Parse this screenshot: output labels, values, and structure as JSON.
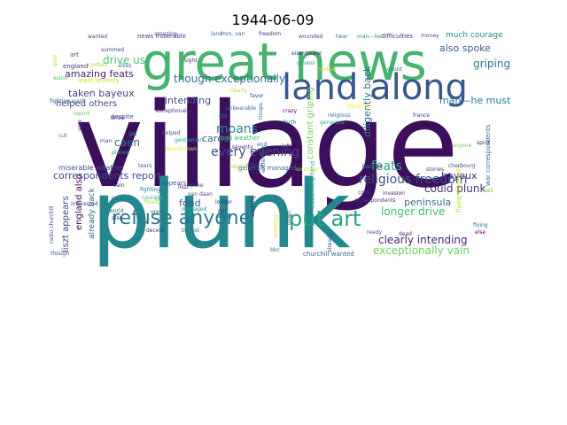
{
  "chart_data": {
    "type": "wordcloud",
    "title": "1944-06-09",
    "grid": false,
    "colormap": "viridis",
    "words": [
      {
        "text": "village",
        "size": 132,
        "color": "#3b0f5c"
      },
      {
        "text": "plunk",
        "size": 106,
        "color": "#23888e"
      },
      {
        "text": "great news",
        "size": 58,
        "color": "#46b36e"
      },
      {
        "text": "land along",
        "size": 40,
        "color": "#39568c"
      },
      {
        "text": "refuse anyone",
        "size": 22,
        "color": "#2a788e"
      },
      {
        "text": "put art",
        "size": 24,
        "color": "#20a486"
      },
      {
        "text": "religious freedom",
        "size": 14,
        "color": "#3b528b"
      },
      {
        "text": "though exceptionally",
        "size": 12,
        "color": "#2d708e"
      },
      {
        "text": "drive us",
        "size": 12,
        "color": "#4ac16d"
      },
      {
        "text": "amazing feats",
        "size": 11,
        "color": "#481f70"
      },
      {
        "text": "taken bayeux",
        "size": 11,
        "color": "#433e85"
      },
      {
        "text": "helped others",
        "size": 10,
        "color": "#414487"
      },
      {
        "text": "intending",
        "size": 11,
        "color": "#38588c"
      },
      {
        "text": "moans",
        "size": 14,
        "color": "#25848e"
      },
      {
        "text": "caen",
        "size": 12,
        "color": "#31688e"
      },
      {
        "text": "every evening",
        "size": 14,
        "color": "#404688"
      },
      {
        "text": "correspondents report",
        "size": 11,
        "color": "#3e4989"
      },
      {
        "text": "cared",
        "size": 11,
        "color": "#35608d"
      },
      {
        "text": "also spoke",
        "size": 11,
        "color": "#355f8d"
      },
      {
        "text": "griping",
        "size": 12,
        "color": "#2a768e"
      },
      {
        "text": "man—he must",
        "size": 11,
        "color": "#277f8e"
      },
      {
        "text": "feats",
        "size": 14,
        "color": "#26ad81"
      },
      {
        "text": "bayeux",
        "size": 11,
        "color": "#472c7a"
      },
      {
        "text": "could plunk",
        "size": 12,
        "color": "#472d7b"
      },
      {
        "text": "longer drive",
        "size": 12,
        "color": "#3fbc73"
      },
      {
        "text": "peninsula",
        "size": 11,
        "color": "#2e6f8e"
      },
      {
        "text": "clearly intending",
        "size": 12,
        "color": "#482475"
      },
      {
        "text": "exceptionally vain",
        "size": 12,
        "color": "#70cf57"
      },
      {
        "text": "fond",
        "size": 11,
        "color": "#3a548c"
      },
      {
        "text": "miserable weather",
        "size": 8,
        "color": "#3c4f8a"
      },
      {
        "text": "generals managed",
        "size": 7,
        "color": "#2c738e"
      },
      {
        "text": "bad weather",
        "size": 7,
        "color": "#35b779"
      },
      {
        "text": "extremely fond",
        "size": 7,
        "color": "#29af7f"
      },
      {
        "text": "much courage",
        "size": 9,
        "color": "#24868e"
      },
      {
        "text": "diligently back",
        "size": 11,
        "color": "#2c728e"
      },
      {
        "text": "constant griping",
        "size": 10,
        "color": "#7ad151"
      },
      {
        "text": "liszt appears",
        "size": 10,
        "color": "#3f4788"
      },
      {
        "text": "england also",
        "size": 10,
        "color": "#440154"
      },
      {
        "text": "already back",
        "size": 9,
        "color": "#2e6e8e"
      },
      {
        "text": "war correspondents",
        "size": 7,
        "color": "#2d718e"
      },
      {
        "text": "flying diligently",
        "size": 7,
        "color": "#b5de2b"
      },
      {
        "text": "news miserable",
        "size": 7,
        "color": "#453581"
      },
      {
        "text": "wounded",
        "size": 6,
        "color": "#3b528b"
      },
      {
        "text": "hear",
        "size": 6,
        "color": "#2a778e"
      },
      {
        "text": "man—he",
        "size": 6,
        "color": "#21918c"
      },
      {
        "text": "difficulties",
        "size": 7,
        "color": "#482878"
      },
      {
        "text": "money",
        "size": 6,
        "color": "#3b528b"
      },
      {
        "text": "eisenhower",
        "size": 6,
        "color": "#46327e"
      },
      {
        "text": "groans",
        "size": 6,
        "color": "#1f9e89"
      },
      {
        "text": "modest",
        "size": 6,
        "color": "#d2e21b"
      },
      {
        "text": "count",
        "size": 6,
        "color": "#2e6d8e"
      },
      {
        "text": "so crazy",
        "size": 6,
        "color": "#b8de29"
      },
      {
        "text": "wanted",
        "size": 6,
        "color": "#3f4889"
      },
      {
        "text": "england",
        "size": 7,
        "color": "#472f7d"
      },
      {
        "text": "art",
        "size": 7,
        "color": "#3b518b"
      },
      {
        "text": "content",
        "size": 6,
        "color": "#addc30"
      },
      {
        "text": "allies",
        "size": 6,
        "color": "#2a788e"
      },
      {
        "text": "sight",
        "size": 6,
        "color": "#404387"
      },
      {
        "text": "water",
        "size": 6,
        "color": "#5ec962"
      },
      {
        "text": "least seventy",
        "size": 7,
        "color": "#c0df25"
      },
      {
        "text": "fighting spirit",
        "size": 6,
        "color": "#31688e"
      },
      {
        "text": "report",
        "size": 6,
        "color": "#5cc863"
      },
      {
        "text": "despite",
        "size": 7,
        "color": "#3d4e8a"
      },
      {
        "text": "exceptionally",
        "size": 6,
        "color": "#443a83"
      },
      {
        "text": "old",
        "size": 6,
        "color": "#25858e"
      },
      {
        "text": "favor",
        "size": 6,
        "color": "#46337f"
      },
      {
        "text": "clearly",
        "size": 6,
        "color": "#b2dd2d"
      },
      {
        "text": "unbearable",
        "size": 6,
        "color": "#297a8e"
      },
      {
        "text": "religious",
        "size": 6,
        "color": "#2d718e"
      },
      {
        "text": "generous",
        "size": 6,
        "color": "#2db27d"
      },
      {
        "text": "anyone",
        "size": 6,
        "color": "#6ece58"
      },
      {
        "text": "stories",
        "size": 6,
        "color": "#3e4a89"
      },
      {
        "text": "spirit",
        "size": 6,
        "color": "#48186a"
      },
      {
        "text": "cut",
        "size": 6,
        "color": "#2c728e"
      },
      {
        "text": "gentleman",
        "size": 6,
        "color": "#21a685"
      },
      {
        "text": "decent man",
        "size": 6,
        "color": "#e5e419"
      },
      {
        "text": "others",
        "size": 6,
        "color": "#3f4788"
      },
      {
        "text": "seventy",
        "size": 6,
        "color": "#482677"
      },
      {
        "text": "tears",
        "size": 6,
        "color": "#3a538b"
      },
      {
        "text": "fighting",
        "size": 6,
        "color": "#2c738e"
      },
      {
        "text": "courage",
        "size": 6,
        "color": "#31b57b"
      },
      {
        "text": "finally",
        "size": 6,
        "color": "#9fda3a"
      },
      {
        "text": "located",
        "size": 6,
        "color": "#2b758e"
      },
      {
        "text": "planes",
        "size": 6,
        "color": "#1fa088"
      },
      {
        "text": "cherbourg",
        "size": 6,
        "color": "#3b528b"
      },
      {
        "text": "refuse",
        "size": 6,
        "color": "#482576"
      },
      {
        "text": "talk",
        "size": 6,
        "color": "#6ccd5a"
      },
      {
        "text": "flying",
        "size": 6,
        "color": "#2b748e"
      },
      {
        "text": "else",
        "size": 6,
        "color": "#46075a"
      },
      {
        "text": "cold",
        "size": 6,
        "color": "#453882"
      },
      {
        "text": "invasion",
        "size": 6,
        "color": "#481769"
      },
      {
        "text": "correspondents",
        "size": 6,
        "color": "#453882"
      },
      {
        "text": "bucket",
        "size": 6,
        "color": "#2a768e"
      },
      {
        "text": "churchill wanted",
        "size": 7,
        "color": "#35608d"
      },
      {
        "text": "radio churchill",
        "size": 6,
        "color": "#3e4c8a"
      },
      {
        "text": "interested",
        "size": 6,
        "color": "#3d4d8a"
      },
      {
        "text": "decent",
        "size": 6,
        "color": "#482979"
      },
      {
        "text": "great",
        "size": 6,
        "color": "#33628d"
      },
      {
        "text": "world",
        "size": 6,
        "color": "#2e6e8e"
      },
      {
        "text": "vain",
        "size": 6,
        "color": "#472a7a"
      },
      {
        "text": "get",
        "size": 6,
        "color": "#20928c"
      },
      {
        "text": "helped",
        "size": 6,
        "color": "#38588c"
      },
      {
        "text": "amazing",
        "size": 6,
        "color": "#3f4889"
      },
      {
        "text": "land",
        "size": 6,
        "color": "#31678e"
      },
      {
        "text": "mrs. van",
        "size": 6,
        "color": "#2e6f8e"
      },
      {
        "text": "freedom",
        "size": 6,
        "color": "#46327e"
      },
      {
        "text": "crazy",
        "size": 6,
        "color": "#440154"
      },
      {
        "text": "forth",
        "size": 6,
        "color": "#2d708e"
      },
      {
        "text": "left",
        "size": 6,
        "color": "#3a548c"
      },
      {
        "text": "end",
        "size": 6,
        "color": "#2e6d8e"
      },
      {
        "text": "hoping",
        "size": 6,
        "color": "#a5db36"
      },
      {
        "text": "liszt",
        "size": 6,
        "color": "#471164"
      },
      {
        "text": "van daan",
        "size": 6,
        "color": "#3e4a89"
      },
      {
        "text": "longer",
        "size": 6,
        "color": "#472e7c"
      },
      {
        "text": "evening",
        "size": 6,
        "color": "#46307e"
      },
      {
        "text": "every",
        "size": 6,
        "color": "#2f6b8e"
      },
      {
        "text": "put",
        "size": 6,
        "color": "#443983"
      },
      {
        "text": "managed",
        "size": 6,
        "color": "#1f958b"
      },
      {
        "text": "appears",
        "size": 7,
        "color": "#3c4f8a"
      },
      {
        "text": "spoke",
        "size": 6,
        "color": "#3f4788"
      },
      {
        "text": "extremely",
        "size": 6,
        "color": "#34608d"
      },
      {
        "text": "troops",
        "size": 6,
        "color": "#2e6e8e"
      },
      {
        "text": "down",
        "size": 6,
        "color": "#414487"
      },
      {
        "text": "already",
        "size": 6,
        "color": "#3e4c8a"
      },
      {
        "text": "bbc",
        "size": 6,
        "color": "#2b758e"
      },
      {
        "text": "amazing",
        "size": 6,
        "color": "#e2e418"
      },
      {
        "text": "also",
        "size": 6,
        "color": "#482475"
      },
      {
        "text": "though",
        "size": 6,
        "color": "#3d4e8a"
      },
      {
        "text": "ready",
        "size": 6,
        "color": "#3b528b"
      },
      {
        "text": "dead",
        "size": 6,
        "color": "#481f70"
      },
      {
        "text": "year",
        "size": 6,
        "color": "#3f4788"
      },
      {
        "text": "man",
        "size": 6,
        "color": "#443983"
      },
      {
        "text": "back",
        "size": 6,
        "color": "#2c738e"
      },
      {
        "text": "france",
        "size": 6,
        "color": "#443a83"
      },
      {
        "text": "summed",
        "size": 6,
        "color": "#3d4e8a"
      },
      {
        "text": "gold",
        "size": 6,
        "color": "#b0dd2f"
      },
      {
        "text": "drive",
        "size": 6,
        "color": "#46327e"
      },
      {
        "text": "thinking",
        "size": 6,
        "color": "#fde725"
      }
    ]
  }
}
